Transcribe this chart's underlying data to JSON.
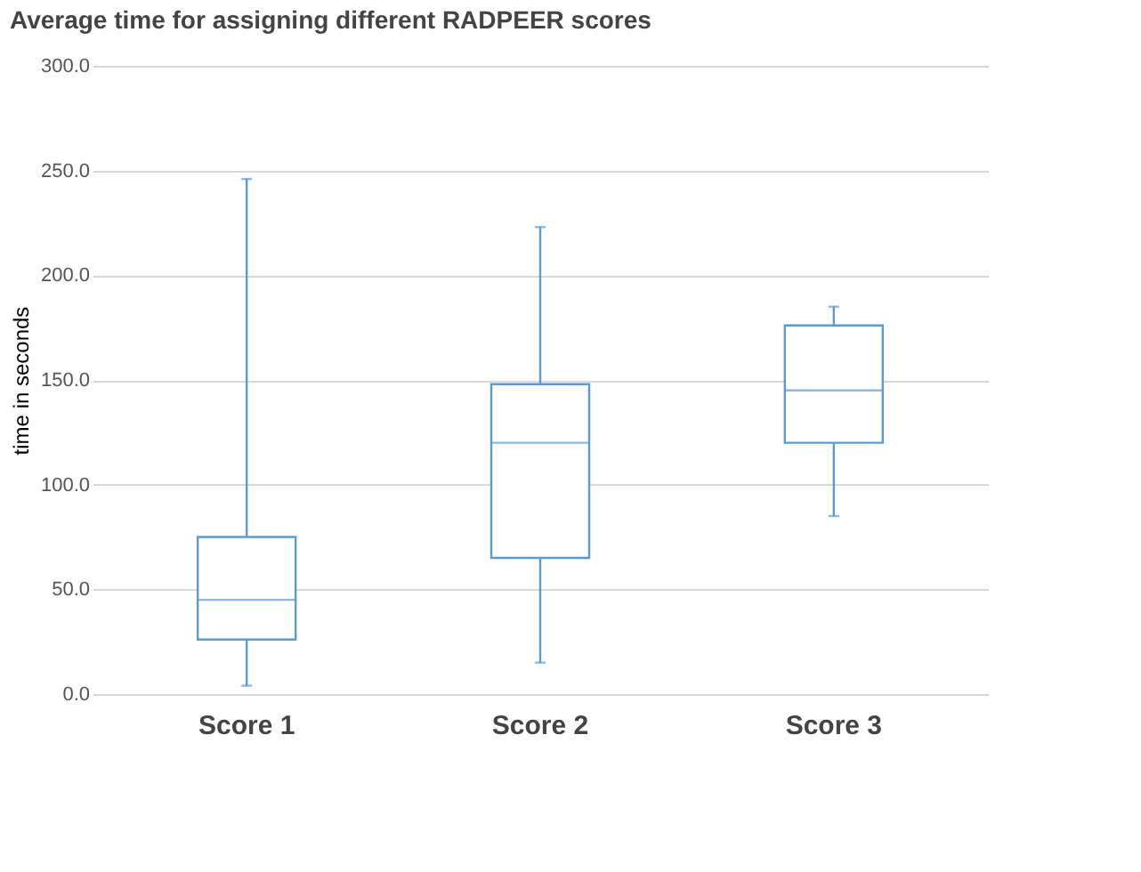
{
  "chart_data": {
    "type": "box",
    "title": "Average time for assigning different RADPEER scores",
    "ylabel": "time in seconds",
    "categories": [
      "Score 1",
      "Score 2",
      "Score 3"
    ],
    "color": "#5b9bd5",
    "boxes": [
      {
        "low": 4,
        "q1": 26,
        "median": 45,
        "q3": 75,
        "high": 246
      },
      {
        "low": 15,
        "q1": 65,
        "median": 120,
        "q3": 148,
        "high": 223
      },
      {
        "low": 85,
        "q1": 120,
        "median": 145,
        "q3": 176,
        "high": 185
      }
    ],
    "ylim": [
      0,
      300
    ],
    "yticks": [
      {
        "value": 0,
        "label": "0.0"
      },
      {
        "value": 50,
        "label": "50.0"
      },
      {
        "value": 100,
        "label": "100.0"
      },
      {
        "value": 150,
        "label": "150.0"
      },
      {
        "value": 200,
        "label": "200.0"
      },
      {
        "value": 250,
        "label": "250.0"
      },
      {
        "value": 300,
        "label": "300.0"
      }
    ],
    "grid": "y"
  }
}
